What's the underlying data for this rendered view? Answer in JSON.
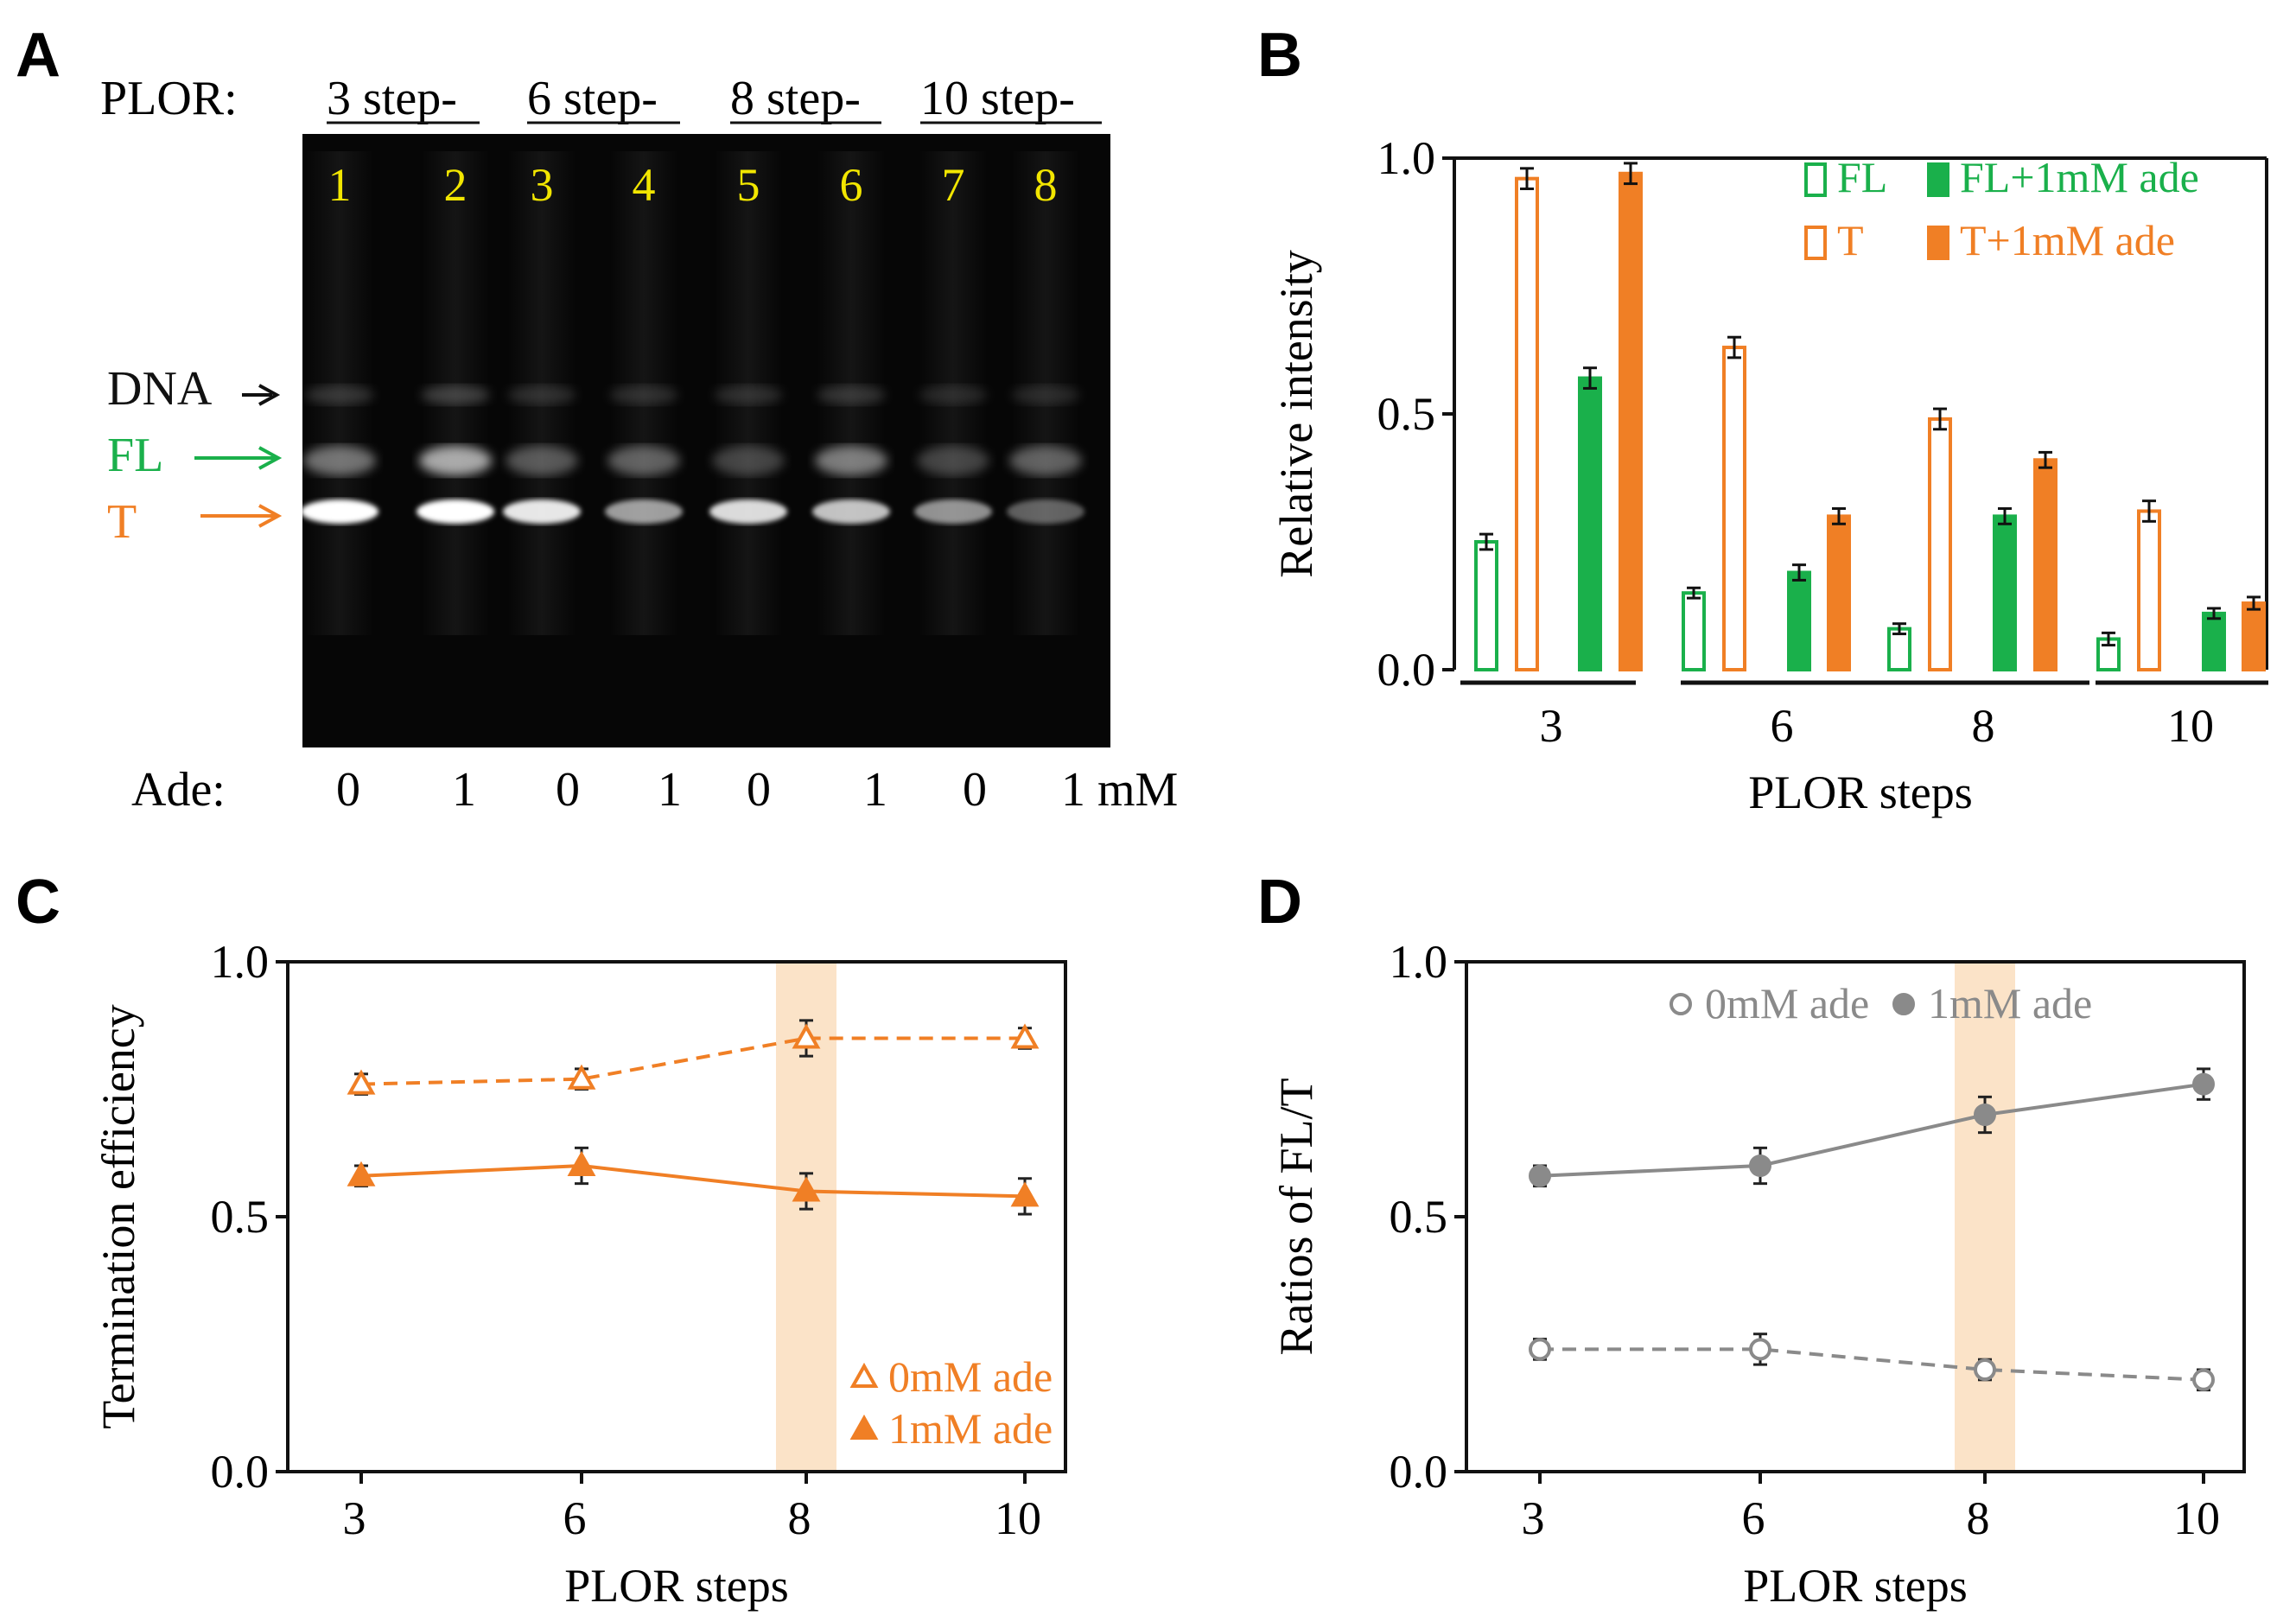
{
  "colors": {
    "green": "#1ab04b",
    "orange": "#f07f25",
    "gray": "#8a8a8a",
    "lane_yellow": "#f2e600",
    "highlight": "#fbe3c8"
  },
  "panel_a": {
    "label": "A",
    "plor_label": "PLOR:",
    "step_groups": [
      "3 step-",
      "6 step-",
      "8 step-",
      "10 step-"
    ],
    "lanes": [
      "1",
      "2",
      "3",
      "4",
      "5",
      "6",
      "7",
      "8"
    ],
    "band_labels": {
      "dna": "DNA",
      "fl": "FL",
      "t": "T"
    },
    "ade_label": "Ade:",
    "ade_values": [
      "0",
      "1",
      "0",
      "1",
      "0",
      "1",
      "0",
      "1 mM"
    ],
    "band_intensity": {
      "dna": [
        0.35,
        0.45,
        0.3,
        0.3,
        0.3,
        0.35,
        0.25,
        0.25
      ],
      "fl": [
        0.55,
        0.85,
        0.4,
        0.45,
        0.3,
        0.6,
        0.3,
        0.45
      ],
      "t": [
        1.0,
        1.0,
        0.9,
        0.6,
        0.85,
        0.75,
        0.55,
        0.35
      ]
    }
  },
  "chart_data": [
    {
      "panel": "B",
      "type": "bar",
      "title": "",
      "xlabel": "PLOR steps",
      "ylabel": "Relative  intensity",
      "categories": [
        "3",
        "6",
        "8",
        "10"
      ],
      "ylim": [
        0,
        1.0
      ],
      "yticks": [
        "0.0",
        "0.5",
        "1.0"
      ],
      "series": [
        {
          "name": "FL",
          "style": "open",
          "color": "#1ab04b",
          "values": [
            0.25,
            0.15,
            0.08,
            0.06
          ],
          "errors": [
            0.015,
            0.01,
            0.01,
            0.012
          ]
        },
        {
          "name": "T",
          "style": "open",
          "color": "#f07f25",
          "values": [
            0.96,
            0.63,
            0.49,
            0.31
          ],
          "errors": [
            0.02,
            0.02,
            0.02,
            0.02
          ]
        },
        {
          "name": "FL+1mM ade",
          "style": "filled",
          "color": "#1ab04b",
          "values": [
            0.57,
            0.19,
            0.3,
            0.11
          ],
          "errors": [
            0.02,
            0.015,
            0.015,
            0.01
          ]
        },
        {
          "name": "T+1mM ade",
          "style": "filled",
          "color": "#f07f25",
          "values": [
            0.97,
            0.3,
            0.41,
            0.13
          ],
          "errors": [
            0.02,
            0.015,
            0.015,
            0.012
          ]
        }
      ]
    },
    {
      "panel": "C",
      "type": "line",
      "title": "",
      "xlabel": "PLOR steps",
      "ylabel": "Termination  efficiency",
      "x": [
        3,
        6,
        8,
        10
      ],
      "xticks": [
        "3",
        "6",
        "8",
        "10"
      ],
      "ylim": [
        0,
        1.0
      ],
      "yticks": [
        "0.0",
        "0.5",
        "1.0"
      ],
      "highlight_x": 8,
      "series": [
        {
          "name": "0mM ade",
          "marker": "open-triangle",
          "line": "dashed",
          "color": "#f07f25",
          "values": [
            0.76,
            0.77,
            0.85,
            0.85
          ],
          "errors": [
            0.02,
            0.02,
            0.035,
            0.02
          ]
        },
        {
          "name": "1mM ade",
          "marker": "filled-triangle",
          "line": "solid",
          "color": "#f07f25",
          "values": [
            0.58,
            0.6,
            0.55,
            0.54
          ],
          "errors": [
            0.02,
            0.035,
            0.035,
            0.035
          ]
        }
      ]
    },
    {
      "panel": "D",
      "type": "line",
      "title": "",
      "xlabel": "PLOR steps",
      "ylabel": "Ratios  of  FL/T",
      "x": [
        3,
        6,
        8,
        10
      ],
      "xticks": [
        "3",
        "6",
        "8",
        "10"
      ],
      "ylim": [
        0,
        1.0
      ],
      "yticks": [
        "0.0",
        "0.5",
        "1.0"
      ],
      "highlight_x": 8,
      "series": [
        {
          "name": "0mM ade",
          "marker": "open-circle",
          "line": "dashed",
          "color": "#8a8a8a",
          "values": [
            0.24,
            0.24,
            0.2,
            0.18
          ],
          "errors": [
            0.02,
            0.03,
            0.02,
            0.02
          ]
        },
        {
          "name": "1mM ade",
          "marker": "filled-circle",
          "line": "solid",
          "color": "#8a8a8a",
          "values": [
            0.58,
            0.6,
            0.7,
            0.76
          ],
          "errors": [
            0.02,
            0.035,
            0.035,
            0.03
          ]
        }
      ]
    }
  ]
}
